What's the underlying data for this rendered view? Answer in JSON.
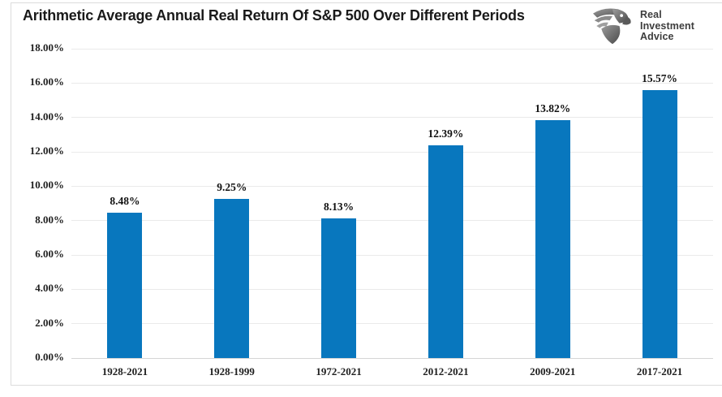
{
  "title": "Arithmetic Average Annual Real Return Of S&P 500 Over Different Periods",
  "logo": {
    "icon": "eagle-icon",
    "lines": [
      "Real",
      "Investment",
      "Advice"
    ]
  },
  "chart_data": {
    "type": "bar",
    "title": "Arithmetic Average Annual Real Return Of S&P 500 Over Different Periods",
    "categories": [
      "1928-2021",
      "1928-1999",
      "1972-2021",
      "2012-2021",
      "2009-2021",
      "2017-2021"
    ],
    "values": [
      8.48,
      9.25,
      8.13,
      12.39,
      13.82,
      15.57
    ],
    "data_labels": [
      "8.48%",
      "9.25%",
      "8.13%",
      "12.39%",
      "13.82%",
      "15.57%"
    ],
    "xlabel": "",
    "ylabel": "",
    "ylim": [
      0,
      18
    ],
    "ytick_step": 2,
    "ytick_labels": [
      "0.00%",
      "2.00%",
      "4.00%",
      "6.00%",
      "8.00%",
      "10.00%",
      "12.00%",
      "14.00%",
      "16.00%",
      "18.00%"
    ],
    "grid": true,
    "legend": "none",
    "bar_color": "#0877BE"
  },
  "colors": {
    "bar": "#0877BE",
    "gridline": "#EAEAEA",
    "axis_line": "#D5D5D5",
    "frame_border": "#DCDCDC",
    "title_text": "#1A1A1A",
    "label_text": "#1F1F1F",
    "logo_text": "#3D3D3D"
  }
}
